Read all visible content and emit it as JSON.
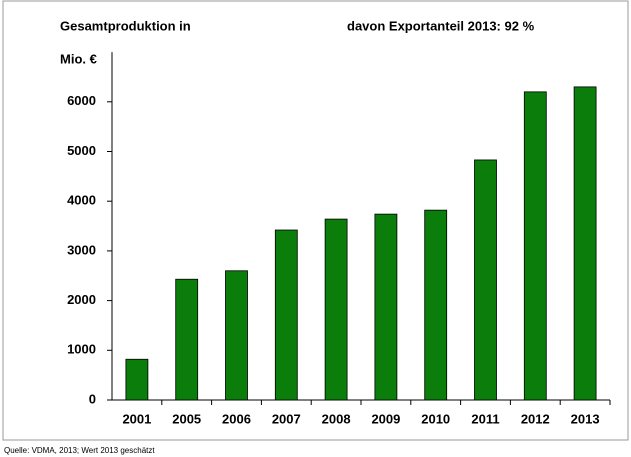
{
  "chart_data": {
    "type": "bar",
    "title": [
      "Gesamtproduktion in",
      "Mio. €"
    ],
    "annotation": "davon Exportanteil 2013: 92 %",
    "source": "Quelle: VDMA, 2013; Wert 2013 geschätzt",
    "categories": [
      "2001",
      "2005",
      "2006",
      "2007",
      "2008",
      "2009",
      "2010",
      "2011",
      "2012",
      "2013"
    ],
    "values": [
      820,
      2430,
      2600,
      3420,
      3640,
      3740,
      3820,
      4830,
      6200,
      6300
    ],
    "color": "#0a7d0a",
    "ylim": [
      0,
      7000
    ],
    "yticks": [
      0,
      1000,
      2000,
      3000,
      4000,
      5000,
      6000
    ],
    "grid": false
  }
}
